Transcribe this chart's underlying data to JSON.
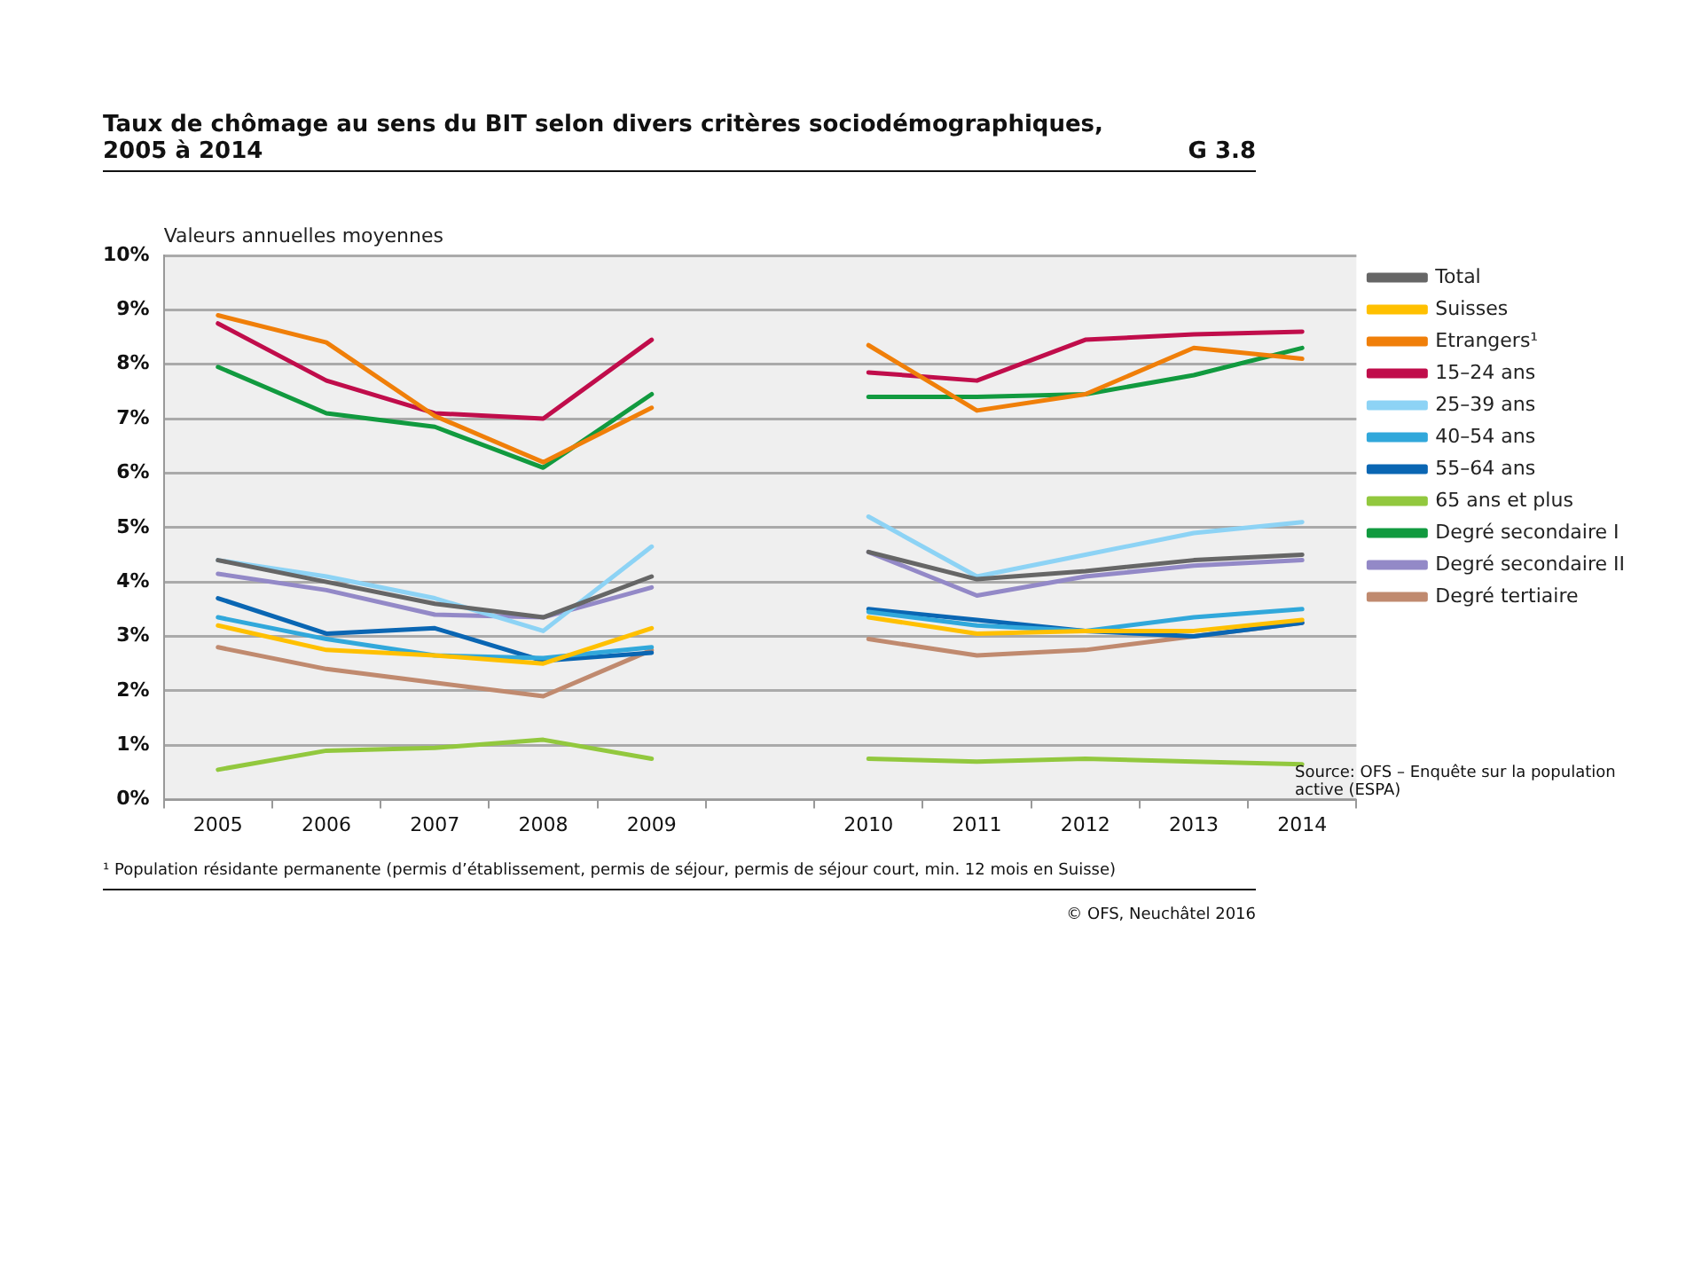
{
  "chart_data": {
    "type": "line",
    "title": "Taux de chômage au sens du BIT selon divers critères sociodémographiques, 2005 à 2014",
    "ylabel": "Valeurs annuelles moyennes",
    "annotations": [
      "G 3.8",
      "Source: OFS – Enquête sur la population active (ESPA)",
      "¹ Population résidante permanente (permis d’établissement, permis de séjour, permis de séjour court, min. 12 mois en Suisse)",
      "© OFS, Neuchâtel 2016"
    ],
    "categories": [
      "2005",
      "2006",
      "2007",
      "2008",
      "2009",
      null,
      "2010",
      "2011",
      "2012",
      "2013",
      "2014"
    ],
    "ylim": [
      0,
      10
    ],
    "yticks": [
      {
        "value": 0,
        "label": "0%"
      },
      {
        "value": 1,
        "label": "1%"
      },
      {
        "value": 2,
        "label": "2%"
      },
      {
        "value": 3,
        "label": "3%"
      },
      {
        "value": 4,
        "label": "4%"
      },
      {
        "value": 5,
        "label": "5%"
      },
      {
        "value": 6,
        "label": "6%"
      },
      {
        "value": 7,
        "label": "7%"
      },
      {
        "value": 8,
        "label": "8%"
      },
      {
        "value": 9,
        "label": "9%"
      },
      {
        "value": 10,
        "label": "10%"
      }
    ],
    "grid": "y",
    "legend": "right",
    "marker": "none",
    "line_style": "solid",
    "series": [
      {
        "name": "Total",
        "color": "#666666",
        "values": [
          4.4,
          4.0,
          3.6,
          3.35,
          4.1,
          null,
          4.55,
          4.05,
          4.2,
          4.4,
          4.5
        ]
      },
      {
        "name": "Suisses",
        "color": "#ffc000",
        "values": [
          3.2,
          2.75,
          2.65,
          2.5,
          3.15,
          null,
          3.35,
          3.05,
          3.1,
          3.1,
          3.3
        ]
      },
      {
        "name": "Etrangers¹",
        "color": "#f07f09",
        "values": [
          8.9,
          8.4,
          7.05,
          6.2,
          7.2,
          null,
          8.35,
          7.15,
          7.45,
          8.3,
          8.1
        ]
      },
      {
        "name": "15–24 ans",
        "color": "#c00d4b",
        "values": [
          8.75,
          7.7,
          7.1,
          7.0,
          8.45,
          null,
          7.85,
          7.7,
          8.45,
          8.55,
          8.6
        ]
      },
      {
        "name": "25–39 ans",
        "color": "#8dd3f5",
        "values": [
          4.4,
          4.1,
          3.7,
          3.1,
          4.65,
          null,
          5.2,
          4.1,
          4.5,
          4.9,
          5.1
        ]
      },
      {
        "name": "40–54 ans",
        "color": "#31a8db",
        "values": [
          3.35,
          2.95,
          2.65,
          2.6,
          2.8,
          null,
          3.45,
          3.2,
          3.1,
          3.35,
          3.5
        ]
      },
      {
        "name": "55–64 ans",
        "color": "#0a66b3",
        "values": [
          3.7,
          3.05,
          3.15,
          2.55,
          2.7,
          null,
          3.5,
          3.3,
          3.1,
          3.0,
          3.25
        ]
      },
      {
        "name": "65 ans et plus",
        "color": "#92c83e",
        "values": [
          0.55,
          0.9,
          0.95,
          1.1,
          0.75,
          null,
          0.75,
          0.7,
          0.75,
          0.7,
          0.65
        ]
      },
      {
        "name": "Degré secondaire I",
        "color": "#119a3f",
        "values": [
          7.95,
          7.1,
          6.85,
          6.1,
          7.45,
          null,
          7.4,
          7.4,
          7.45,
          7.8,
          8.3
        ]
      },
      {
        "name": "Degré secondaire II",
        "color": "#9389c7",
        "values": [
          4.15,
          3.85,
          3.4,
          3.35,
          3.9,
          null,
          4.55,
          3.75,
          4.1,
          4.3,
          4.4
        ]
      },
      {
        "name": "Degré tertiaire",
        "color": "#c08a6f",
        "values": [
          2.8,
          2.4,
          2.15,
          1.9,
          2.75,
          null,
          2.95,
          2.65,
          2.75,
          3.0,
          3.25
        ]
      }
    ]
  }
}
